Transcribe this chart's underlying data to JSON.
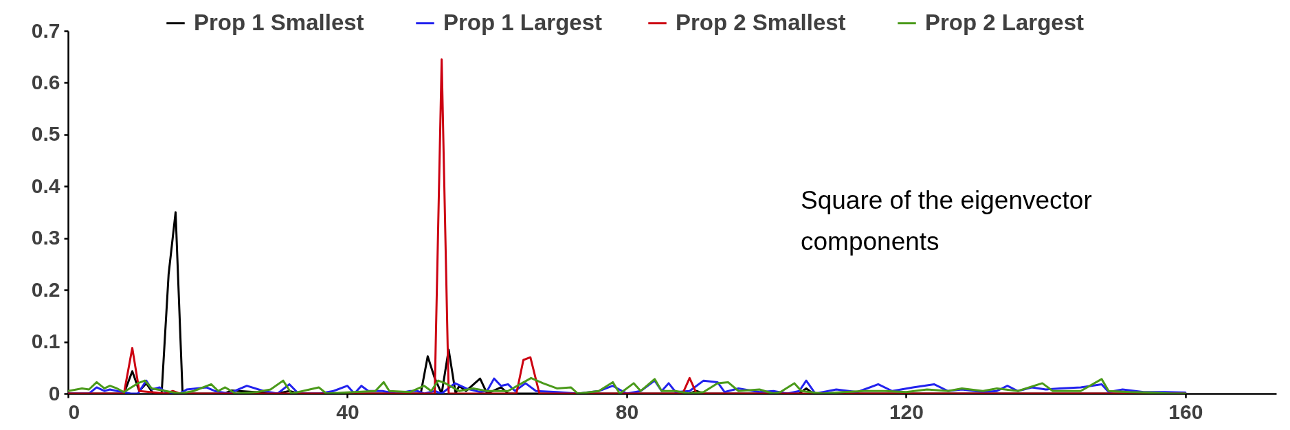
{
  "chart_data": {
    "type": "line",
    "xlim": [
      0,
      173
    ],
    "xticks": [
      0,
      40,
      80,
      120,
      160
    ],
    "ylim": [
      0,
      0.7
    ],
    "yticks": [
      0,
      0.1,
      0.2,
      0.3,
      0.4,
      0.5,
      0.6,
      0.7
    ],
    "legend": "top",
    "line_style": "solid",
    "annotations": [
      "Square of the eigenvector components"
    ],
    "series": [
      {
        "name": "Prop 1  Smallest",
        "color": "#000000",
        "x": [
          0,
          8,
          9.2,
          10.2,
          11.2,
          12.2,
          13.4,
          14.4,
          15.4,
          16.4,
          22.4,
          23.4,
          30,
          31.7,
          33,
          50.5,
          51.5,
          52.5,
          53.5,
          54.5,
          55.5,
          56,
          57,
          59,
          60,
          62,
          63,
          70,
          89,
          90,
          91,
          104.7,
          105.7,
          106.7,
          160
        ],
        "values": [
          0,
          0,
          0.043,
          0.005,
          0.02,
          0,
          0,
          0.23,
          0.35,
          0,
          0,
          0.006,
          0,
          0.005,
          0,
          0,
          0.072,
          0.03,
          0,
          0.085,
          0,
          0.015,
          0.005,
          0.029,
          0,
          0.012,
          0,
          0,
          0,
          0.005,
          0,
          0,
          0.01,
          0,
          0
        ]
      },
      {
        "name": "Prop 1 Largest",
        "color": "#2222ee",
        "x": [
          0,
          3,
          4.1,
          5.2,
          6,
          7,
          9,
          10,
          11.2,
          12,
          13.1,
          14.2,
          16,
          17,
          19.8,
          21,
          23,
          25.6,
          28,
          30,
          31.7,
          33,
          36,
          38,
          40,
          41,
          42,
          43,
          45,
          47,
          49,
          50,
          51,
          52.5,
          53.5,
          55.4,
          57,
          59,
          60,
          61,
          62,
          63,
          64,
          65.5,
          67,
          70,
          73,
          76,
          78,
          80,
          82,
          84,
          85,
          86,
          87,
          89,
          91,
          93,
          94,
          96,
          99,
          101,
          103,
          104.7,
          105.7,
          107,
          110,
          113,
          116,
          118,
          121,
          124,
          126,
          128,
          131,
          133,
          134.5,
          136,
          138,
          140,
          142,
          145,
          148,
          149,
          151,
          154,
          157,
          160
        ],
        "values": [
          0,
          0,
          0.012,
          0.005,
          0.008,
          0.005,
          0,
          0,
          0.025,
          0.008,
          0.012,
          0,
          0,
          0.008,
          0.012,
          0.005,
          0,
          0.015,
          0.005,
          0,
          0.018,
          0,
          0,
          0.005,
          0.015,
          0,
          0.015,
          0.005,
          0.005,
          0,
          0.005,
          0.005,
          0,
          0.005,
          0,
          0.02,
          0.01,
          0.003,
          0.005,
          0.029,
          0.015,
          0.018,
          0.005,
          0.02,
          0.005,
          0.003,
          0,
          0.005,
          0.015,
          0,
          0.005,
          0.025,
          0.005,
          0.02,
          0.003,
          0.005,
          0.025,
          0.022,
          0.003,
          0.01,
          0.003,
          0.005,
          0,
          0.005,
          0.025,
          0,
          0.008,
          0.003,
          0.018,
          0.005,
          0.012,
          0.018,
          0.005,
          0.008,
          0.003,
          0.005,
          0.015,
          0.005,
          0.012,
          0.008,
          0.01,
          0.012,
          0.018,
          0.003,
          0.008,
          0.003,
          0.003,
          0.002
        ]
      },
      {
        "name": "Prop 2  Smallest",
        "color": "#cc0011",
        "x": [
          0,
          8,
          9.2,
          10.2,
          14,
          15,
          16,
          52.5,
          53.5,
          54.5,
          64.2,
          65.2,
          66.2,
          67.5,
          88,
          89,
          90,
          160
        ],
        "values": [
          0,
          0,
          0.088,
          0.005,
          0,
          0.005,
          0,
          0,
          0.645,
          0,
          0,
          0.065,
          0.07,
          0,
          0,
          0.03,
          0,
          0
        ]
      },
      {
        "name": "Prop 2 Largest",
        "color": "#4a9a1a",
        "x": [
          0,
          2,
          3,
          4.1,
          5.2,
          6,
          7,
          8,
          10,
          11,
          12,
          14,
          16,
          18,
          20.5,
          21.5,
          22.5,
          24,
          27,
          29,
          30.8,
          32,
          35.9,
          37,
          41,
          44,
          45.2,
          46,
          49,
          51,
          52,
          53,
          54,
          56,
          58,
          60,
          63,
          66.3,
          68,
          70,
          72,
          73,
          76,
          78,
          79,
          81,
          82,
          84,
          85,
          87,
          89,
          91,
          93,
          94.5,
          96,
          99,
          101,
          102,
          104,
          105,
          108,
          111,
          114,
          117,
          120,
          123,
          126,
          128,
          131,
          133,
          136,
          139.5,
          141,
          145,
          148,
          149,
          152,
          155,
          158,
          160
        ],
        "values": [
          0.005,
          0.01,
          0.008,
          0.022,
          0.01,
          0.015,
          0.01,
          0.003,
          0.02,
          0.025,
          0.01,
          0.005,
          0,
          0.005,
          0.018,
          0.005,
          0.012,
          0,
          0.003,
          0.008,
          0.025,
          0,
          0.012,
          0,
          0.003,
          0.005,
          0.022,
          0.005,
          0.003,
          0.015,
          0.005,
          0.025,
          0.02,
          0.005,
          0.01,
          0.005,
          0.005,
          0.03,
          0.02,
          0.01,
          0.012,
          0,
          0.005,
          0.022,
          0,
          0.02,
          0.005,
          0.028,
          0.005,
          0.005,
          0,
          0.003,
          0.02,
          0.022,
          0.005,
          0.008,
          0,
          0.003,
          0.02,
          0.005,
          0,
          0.003,
          0.005,
          0.005,
          0.003,
          0.008,
          0.005,
          0.01,
          0.005,
          0.01,
          0.005,
          0.02,
          0.005,
          0.005,
          0.028,
          0.005,
          0.003,
          0.002,
          0,
          0
        ]
      }
    ]
  }
}
